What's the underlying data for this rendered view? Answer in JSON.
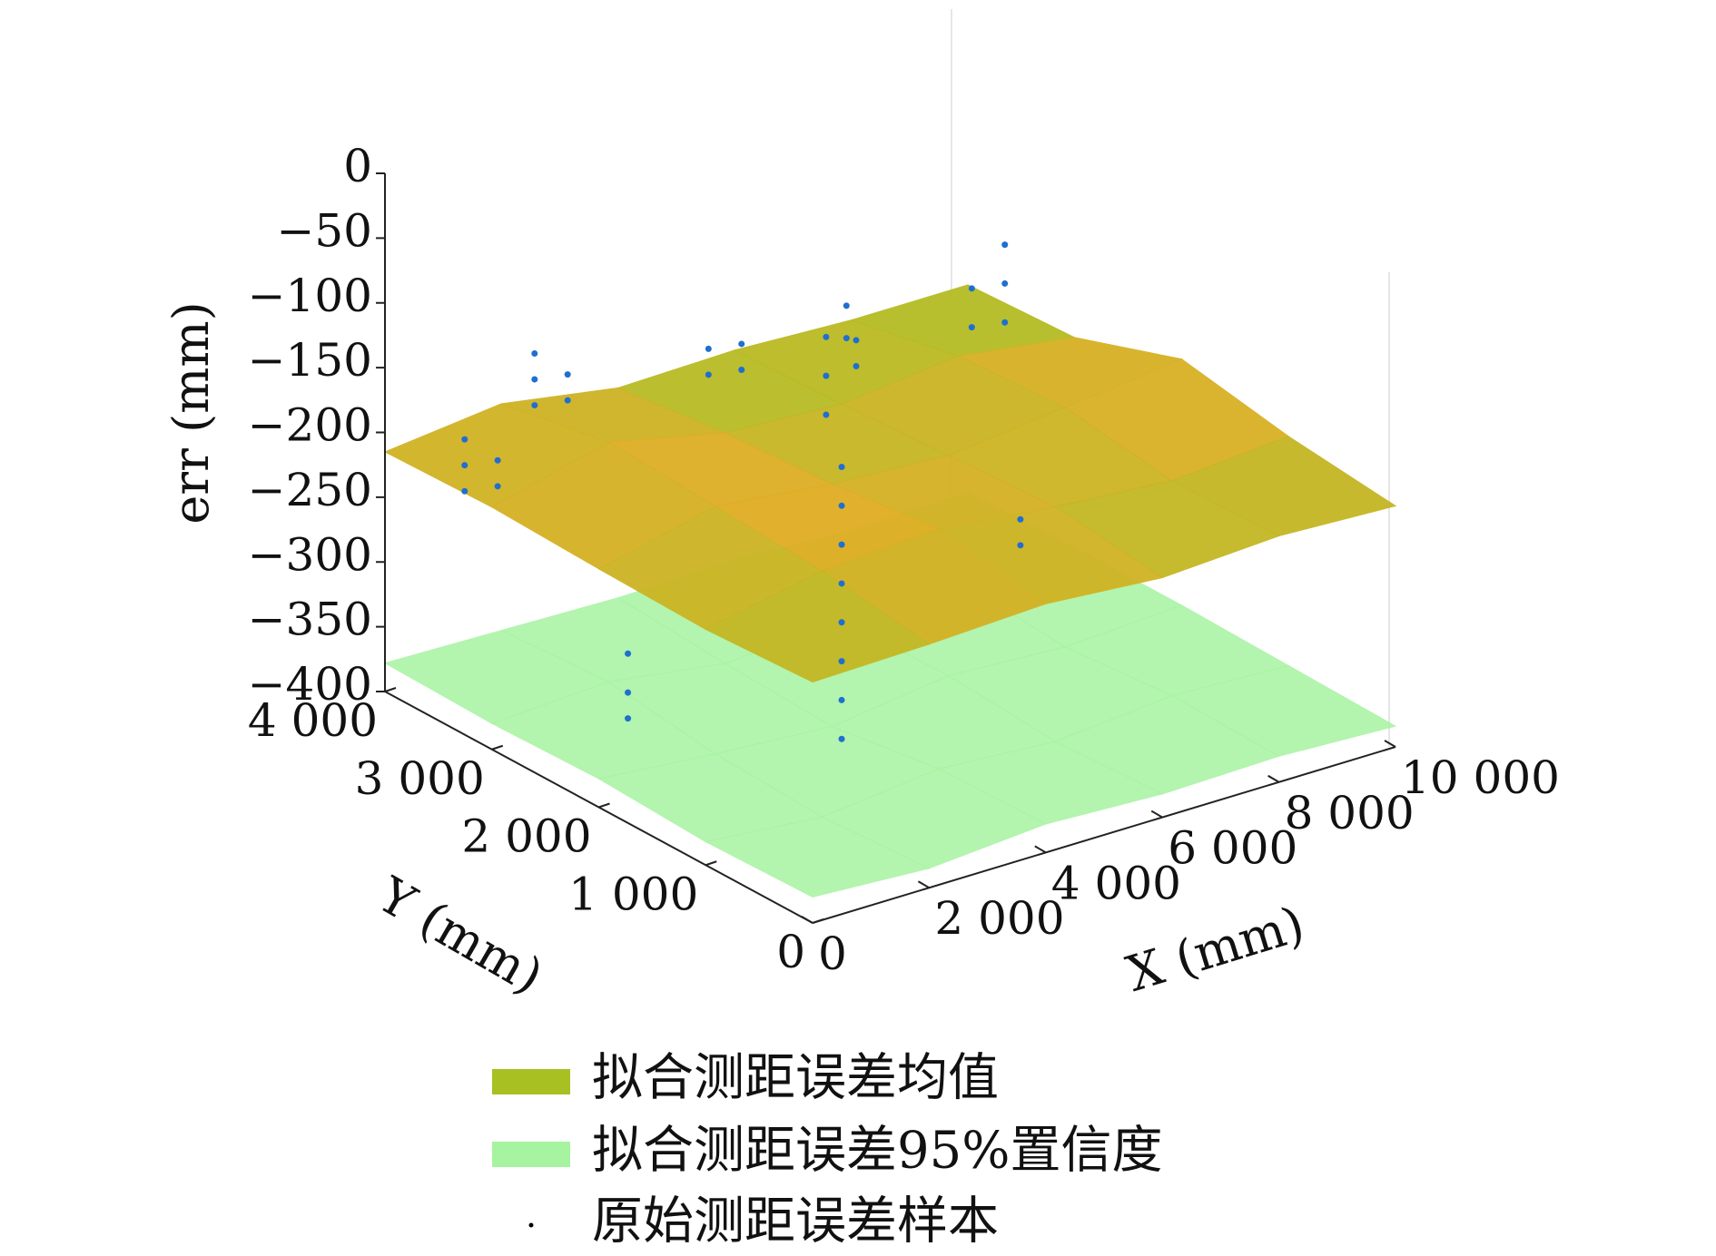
{
  "chart_data": {
    "type": "surface3d",
    "zlabel": "err (mm)",
    "ylabel": "Y (mm)",
    "xlabel": "X (mm)",
    "zlim": [
      -400,
      0
    ],
    "zticks": [
      {
        "value": 0,
        "label": "0"
      },
      {
        "value": -50,
        "label": "−50"
      },
      {
        "value": -100,
        "label": "−100"
      },
      {
        "value": -150,
        "label": "−150"
      },
      {
        "value": -200,
        "label": "−200"
      },
      {
        "value": -250,
        "label": "−250"
      },
      {
        "value": -300,
        "label": "−300"
      },
      {
        "value": -350,
        "label": "−350"
      },
      {
        "value": -400,
        "label": "−400"
      }
    ],
    "xlim": [
      0,
      10000
    ],
    "xticks": [
      0,
      {
        "value": 2000,
        "label": "2 000"
      },
      {
        "value": 4000,
        "label": "4 000"
      },
      {
        "value": 6000,
        "label": "6 000"
      },
      {
        "value": 8000,
        "label": "8 000"
      },
      {
        "value": 10000,
        "label": "10 000"
      }
    ],
    "ylim": [
      0,
      4000
    ],
    "yticks": [
      0,
      {
        "value": 1000,
        "label": "1 000"
      },
      {
        "value": 2000,
        "label": "2 000"
      },
      {
        "value": 3000,
        "label": "3 000"
      },
      {
        "value": 4000,
        "label": "4 000"
      }
    ],
    "grid_x": [
      0,
      2000,
      4000,
      6000,
      8000,
      10000
    ],
    "grid_y": [
      0,
      1000,
      2000,
      3000,
      4000
    ],
    "surfaces": [
      {
        "name": "拟合测距误差95%置信度",
        "color": "#a6f3a0",
        "z": [
          [
            -380,
            -385,
            -378,
            -382,
            -380,
            -384
          ],
          [
            -382,
            -390,
            -380,
            -386,
            -378,
            -382
          ],
          [
            -378,
            -386,
            -392,
            -380,
            -385,
            -380
          ],
          [
            -380,
            -375,
            -388,
            -382,
            -378,
            -380
          ],
          [
            -378,
            -380,
            -382,
            -380,
            -384,
            -382
          ]
        ]
      },
      {
        "name": "拟合测距误差均值",
        "color": "#a9c023",
        "colormap": [
          "#a9c023",
          "#f5a623"
        ],
        "z": [
          [
            -214,
            -212,
            -208,
            -215,
            -210,
            -214
          ],
          [
            -218,
            -200,
            -195,
            -205,
            -212,
            -205
          ],
          [
            -216,
            -195,
            -205,
            -210,
            -200,
            -190
          ],
          [
            -213,
            -190,
            -210,
            -215,
            -205,
            -218
          ],
          [
            -215,
            -205,
            -220,
            -218,
            -222,
            -222
          ]
        ]
      }
    ],
    "samples": {
      "name": "原始测距误差样本",
      "color": "#1f6fd0",
      "x": [
        3800,
        3800,
        3800,
        3800,
        3800,
        3800,
        3800,
        3800,
        3900,
        3900,
        3900,
        1000,
        1000,
        1000,
        1200,
        1200,
        2200,
        2200,
        2200,
        2400,
        2400,
        5000,
        5000,
        5200,
        5200,
        6800,
        6800,
        7000,
        7000,
        8600,
        8600,
        8800,
        8800,
        8800,
        1600,
        1600,
        1600,
        7600,
        7600
      ],
      "y": [
        1800,
        1800,
        1800,
        1800,
        1800,
        1800,
        1800,
        1800,
        2000,
        2000,
        2000,
        3800,
        3800,
        3800,
        3600,
        3600,
        3800,
        3800,
        3800,
        3600,
        3600,
        3700,
        3700,
        3500,
        3500,
        3300,
        3300,
        3500,
        3500,
        3200,
        3200,
        3000,
        3000,
        3000,
        2600,
        2600,
        2600,
        2200,
        2200
      ],
      "z": [
        -390,
        -360,
        -330,
        -300,
        -270,
        -240,
        -210,
        -180,
        -150,
        -120,
        -90,
        -250,
        -230,
        -210,
        -240,
        -220,
        -200,
        -180,
        -160,
        -190,
        -170,
        -210,
        -190,
        -200,
        -180,
        -210,
        -190,
        -200,
        -175,
        -200,
        -170,
        -190,
        -160,
        -130,
        -330,
        -360,
        -380,
        -290,
        -310
      ]
    }
  }
}
